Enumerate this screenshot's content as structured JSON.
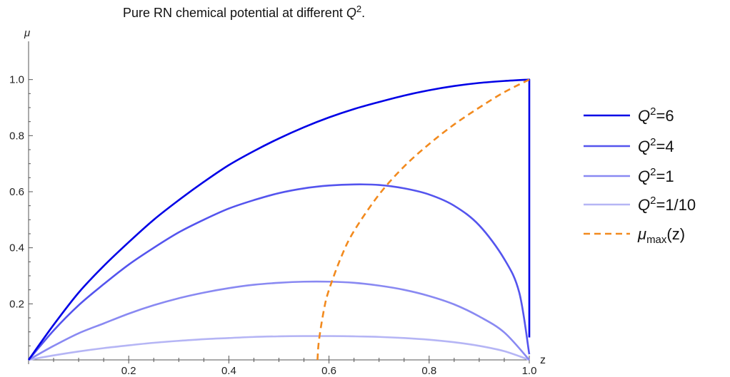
{
  "chart_data": {
    "type": "line",
    "title_main": "Pure RN chemical potential at different ",
    "title_var": "Q",
    "title_sup": "2",
    "title_end": ".",
    "xlabel": "z",
    "ylabel": "μ",
    "xlim": [
      0,
      1
    ],
    "ylim": [
      0,
      1.05
    ],
    "x_ticks": [
      "0.2",
      "0.4",
      "0.6",
      "0.8",
      "1.0"
    ],
    "y_ticks": [
      "0.2",
      "0.4",
      "0.6",
      "0.8",
      "1.0"
    ],
    "grid": false,
    "legend_position": "right",
    "series": [
      {
        "name": "Q²=6",
        "legend_var": "Q",
        "legend_sup": "2",
        "legend_rest": "=6",
        "color": "#0000e6",
        "style": "solid",
        "points": [
          [
            0,
            0
          ],
          [
            0.05,
            0.125
          ],
          [
            0.1,
            0.24
          ],
          [
            0.15,
            0.335
          ],
          [
            0.2,
            0.42
          ],
          [
            0.25,
            0.5
          ],
          [
            0.3,
            0.57
          ],
          [
            0.35,
            0.635
          ],
          [
            0.4,
            0.695
          ],
          [
            0.45,
            0.745
          ],
          [
            0.5,
            0.79
          ],
          [
            0.55,
            0.83
          ],
          [
            0.6,
            0.865
          ],
          [
            0.65,
            0.895
          ],
          [
            0.7,
            0.92
          ],
          [
            0.75,
            0.943
          ],
          [
            0.8,
            0.962
          ],
          [
            0.85,
            0.977
          ],
          [
            0.9,
            0.988
          ],
          [
            0.95,
            0.995
          ],
          [
            1.0,
            1.0
          ],
          [
            1.0,
            0.08
          ]
        ]
      },
      {
        "name": "Q²=4",
        "legend_var": "Q",
        "legend_sup": "2",
        "legend_rest": "=4",
        "color": "#5454ee",
        "style": "solid",
        "points": [
          [
            0,
            0
          ],
          [
            0.05,
            0.105
          ],
          [
            0.1,
            0.195
          ],
          [
            0.15,
            0.27
          ],
          [
            0.2,
            0.34
          ],
          [
            0.25,
            0.4
          ],
          [
            0.3,
            0.455
          ],
          [
            0.35,
            0.5
          ],
          [
            0.4,
            0.54
          ],
          [
            0.45,
            0.57
          ],
          [
            0.5,
            0.595
          ],
          [
            0.55,
            0.612
          ],
          [
            0.6,
            0.622
          ],
          [
            0.65,
            0.626
          ],
          [
            0.7,
            0.624
          ],
          [
            0.75,
            0.612
          ],
          [
            0.8,
            0.59
          ],
          [
            0.85,
            0.55
          ],
          [
            0.9,
            0.48
          ],
          [
            0.95,
            0.36
          ],
          [
            0.98,
            0.24
          ],
          [
            1.0,
            0.02
          ]
        ]
      },
      {
        "name": "Q²=1",
        "legend_var": "Q",
        "legend_sup": "2",
        "legend_rest": "=1",
        "color": "#8989f2",
        "style": "solid",
        "points": [
          [
            0,
            0
          ],
          [
            0.05,
            0.05
          ],
          [
            0.1,
            0.095
          ],
          [
            0.15,
            0.13
          ],
          [
            0.2,
            0.165
          ],
          [
            0.25,
            0.195
          ],
          [
            0.3,
            0.22
          ],
          [
            0.35,
            0.24
          ],
          [
            0.4,
            0.256
          ],
          [
            0.45,
            0.268
          ],
          [
            0.5,
            0.275
          ],
          [
            0.55,
            0.279
          ],
          [
            0.6,
            0.279
          ],
          [
            0.65,
            0.275
          ],
          [
            0.7,
            0.265
          ],
          [
            0.75,
            0.25
          ],
          [
            0.8,
            0.228
          ],
          [
            0.85,
            0.198
          ],
          [
            0.9,
            0.155
          ],
          [
            0.95,
            0.098
          ],
          [
            1.0,
            0.0
          ]
        ]
      },
      {
        "name": "Q²=1/10",
        "legend_var": "Q",
        "legend_sup": "2",
        "legend_rest": "=1/10",
        "color": "#b5b5f5",
        "style": "solid",
        "points": [
          [
            0,
            0
          ],
          [
            0.05,
            0.016
          ],
          [
            0.1,
            0.03
          ],
          [
            0.15,
            0.042
          ],
          [
            0.2,
            0.052
          ],
          [
            0.25,
            0.061
          ],
          [
            0.3,
            0.068
          ],
          [
            0.35,
            0.074
          ],
          [
            0.4,
            0.078
          ],
          [
            0.45,
            0.082
          ],
          [
            0.5,
            0.084
          ],
          [
            0.55,
            0.085
          ],
          [
            0.6,
            0.085
          ],
          [
            0.65,
            0.084
          ],
          [
            0.7,
            0.082
          ],
          [
            0.75,
            0.078
          ],
          [
            0.8,
            0.072
          ],
          [
            0.85,
            0.063
          ],
          [
            0.9,
            0.05
          ],
          [
            0.95,
            0.031
          ],
          [
            1.0,
            0.0
          ]
        ]
      },
      {
        "name": "μmax(z)",
        "legend_var": "μ",
        "legend_sub": "max",
        "legend_rest": "(z)",
        "color": "#f28a1e",
        "style": "dashed",
        "points": [
          [
            0.577,
            0
          ],
          [
            0.58,
            0.07
          ],
          [
            0.59,
            0.18
          ],
          [
            0.6,
            0.25
          ],
          [
            0.625,
            0.37
          ],
          [
            0.65,
            0.46
          ],
          [
            0.7,
            0.59
          ],
          [
            0.75,
            0.69
          ],
          [
            0.8,
            0.77
          ],
          [
            0.85,
            0.84
          ],
          [
            0.9,
            0.9
          ],
          [
            0.95,
            0.955
          ],
          [
            1.0,
            1.0
          ]
        ]
      }
    ]
  }
}
